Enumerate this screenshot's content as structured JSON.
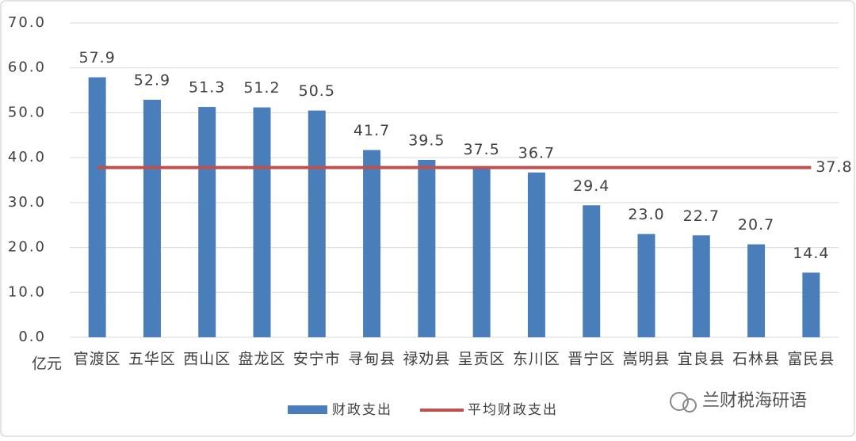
{
  "chart_data": {
    "type": "bar",
    "y_axis_label": "亿元",
    "categories": [
      "官渡区",
      "五华区",
      "西山区",
      "盘龙区",
      "安宁市",
      "寻甸县",
      "禄劝县",
      "呈贡区",
      "东川区",
      "晋宁区",
      "嵩明县",
      "宜良县",
      "石林县",
      "富民县"
    ],
    "series": [
      {
        "name": "财政支出",
        "type": "bar",
        "color": "#4a7ebb",
        "values": [
          57.9,
          52.9,
          51.3,
          51.2,
          50.5,
          41.7,
          39.5,
          37.5,
          36.7,
          29.4,
          23.0,
          22.7,
          20.7,
          14.4
        ],
        "value_labels": [
          "57.9",
          "52.9",
          "51.3",
          "51.2",
          "50.5",
          "41.7",
          "39.5",
          "37.5",
          "36.7",
          "29.4",
          "23.0",
          "22.7",
          "20.7",
          "14.4"
        ]
      },
      {
        "name": "平均财政支出",
        "type": "line",
        "color": "#c0504d",
        "values": [
          37.8,
          37.8,
          37.8,
          37.8,
          37.8,
          37.8,
          37.8,
          37.8,
          37.8,
          37.8,
          37.8,
          37.8,
          37.8,
          37.8
        ]
      }
    ],
    "ylim": [
      0,
      70
    ],
    "yticks": [
      {
        "value": 0,
        "label": "0.0"
      },
      {
        "value": 10,
        "label": "10.0"
      },
      {
        "value": 20,
        "label": "20.0"
      },
      {
        "value": 30,
        "label": "30.0"
      },
      {
        "value": 40,
        "label": "40.0"
      },
      {
        "value": 50,
        "label": "50.0"
      },
      {
        "value": 60,
        "label": "60.0"
      },
      {
        "value": 70,
        "label": "70.0"
      }
    ],
    "grid": true,
    "legend": "bottom"
  },
  "watermark": "兰财税海研语"
}
